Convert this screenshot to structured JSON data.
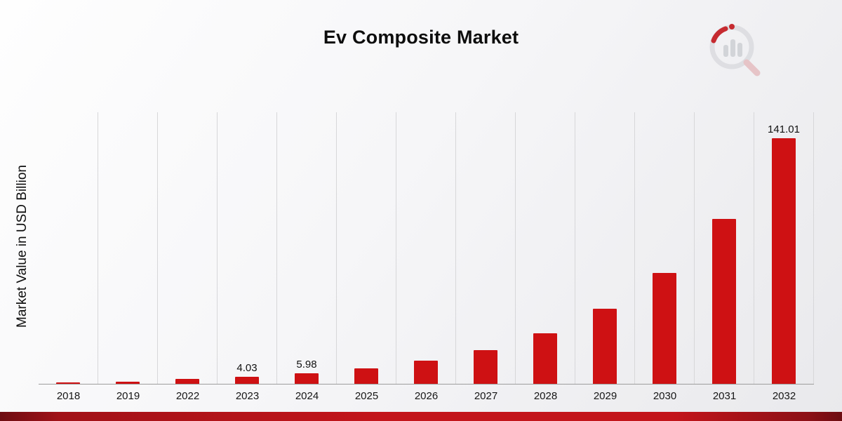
{
  "title": "Ev Composite Market",
  "y_axis_label": "Market Value in USD Billion",
  "colors": {
    "bar": "#ce1113",
    "footer_red": "#c3151b",
    "gridline": "#d7d7d9",
    "baseline": "#9d9d9d",
    "title_text": "#0d0d0d"
  },
  "logo": {
    "name": "market-research-bar-circle-logo"
  },
  "chart_data": {
    "type": "bar",
    "title": "Ev Composite Market",
    "xlabel": "",
    "ylabel": "Market Value in USD Billion",
    "categories": [
      "2018",
      "2019",
      "2022",
      "2023",
      "2024",
      "2025",
      "2026",
      "2027",
      "2028",
      "2029",
      "2030",
      "2031",
      "2032"
    ],
    "values": [
      0.8,
      1.3,
      2.7,
      4.03,
      5.98,
      8.87,
      13.16,
      19.52,
      28.96,
      42.96,
      63.74,
      94.56,
      141.01
    ],
    "point_labels": [
      "",
      "",
      "",
      "4.03",
      "5.98",
      "",
      "",
      "",
      "",
      "",
      "",
      "",
      "141.01"
    ],
    "ylim": [
      0,
      156
    ],
    "bar_color": "#ce1113",
    "grid": "vertical category separators only",
    "legend": "none",
    "notes": "values for unlabeled bars estimated from bar heights; only 2023, 2024 and 2032 carry data labels"
  }
}
